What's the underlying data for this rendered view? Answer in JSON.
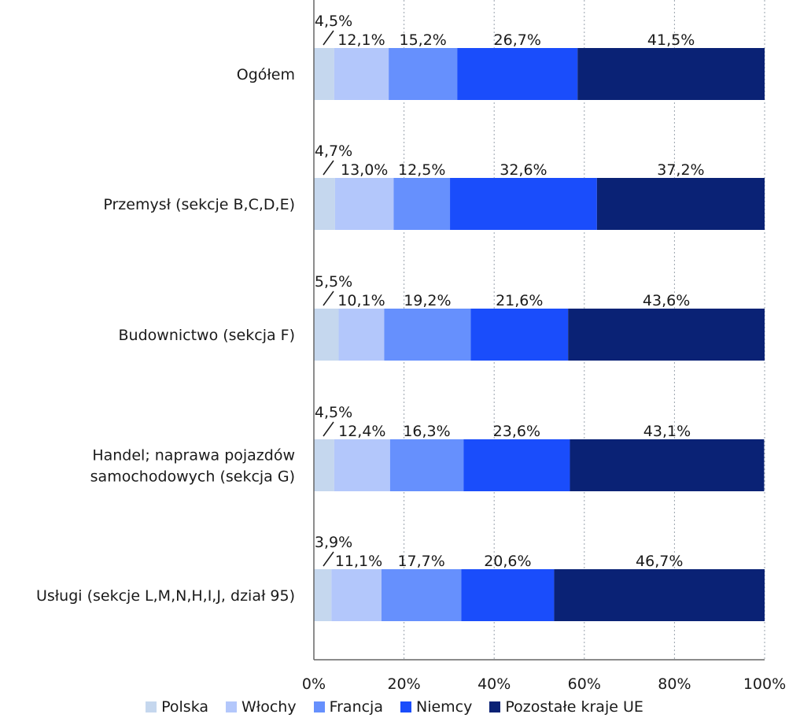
{
  "chart_data": {
    "type": "bar",
    "orientation": "horizontal",
    "stacked": true,
    "title": "",
    "xlabel": "",
    "ylabel": "",
    "xlim": [
      0,
      100
    ],
    "x_ticks": [
      "0%",
      "20%",
      "40%",
      "60%",
      "80%",
      "100%"
    ],
    "grid": "vertical dotted",
    "legend_position": "bottom",
    "categories": [
      "Ogółem",
      "Przemysł (sekcje B,C,D,E)",
      "Budownictwo (sekcja F)",
      "Handel; naprawa pojazdów samochodowych (sekcja G)",
      "Usługi (sekcje L,M,N,H,I,J, dział 95)"
    ],
    "category_lines": [
      [
        "Ogółem"
      ],
      [
        "Przemysł (sekcje B,C,D,E)"
      ],
      [
        "Budownictwo (sekcja F)"
      ],
      [
        "Handel; naprawa pojazdów",
        "samochodowych (sekcja G)"
      ],
      [
        "Usługi (sekcje L,M,N,H,I,J, dział 95)"
      ]
    ],
    "series": [
      {
        "name": "Polska",
        "color": "#c5d7ee",
        "values": [
          4.5,
          4.7,
          5.5,
          4.5,
          3.9
        ],
        "labels": [
          "4,5%",
          "4,7%",
          "5,5%",
          "4,5%",
          "3,9%"
        ]
      },
      {
        "name": "Włochy",
        "color": "#b3c7fb",
        "values": [
          12.1,
          13.0,
          10.1,
          12.4,
          11.1
        ],
        "labels": [
          "12,1%",
          "13,0%",
          "10,1%",
          "12,4%",
          "11,1%"
        ]
      },
      {
        "name": "Francja",
        "color": "#6690fd",
        "values": [
          15.2,
          12.5,
          19.2,
          16.3,
          17.7
        ],
        "labels": [
          "15,2%",
          "12,5%",
          "19,2%",
          "16,3%",
          "17,7%"
        ]
      },
      {
        "name": "Niemcy",
        "color": "#1a4dfb",
        "values": [
          26.7,
          32.6,
          21.6,
          23.6,
          20.6
        ],
        "labels": [
          "26,7%",
          "32,6%",
          "21,6%",
          "23,6%",
          "20,6%"
        ]
      },
      {
        "name": "Pozostałe kraje UE",
        "color": "#0a2275",
        "values": [
          41.5,
          37.2,
          43.6,
          43.1,
          46.7
        ],
        "labels": [
          "41,5%",
          "37,2%",
          "43,6%",
          "43,1%",
          "46,7%"
        ]
      }
    ]
  }
}
